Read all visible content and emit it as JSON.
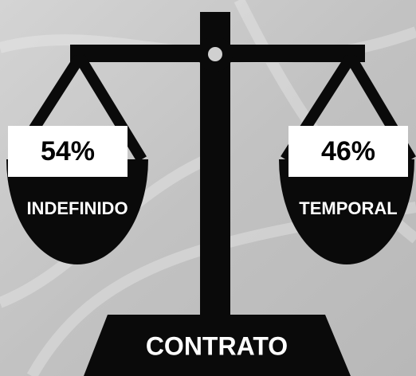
{
  "scale": {
    "pans": [
      {
        "value_label": "54%",
        "name": "INDEFINIDO"
      },
      {
        "value_label": "46%",
        "name": "TEMPORAL"
      }
    ],
    "base_label": "CONTRATO"
  }
}
